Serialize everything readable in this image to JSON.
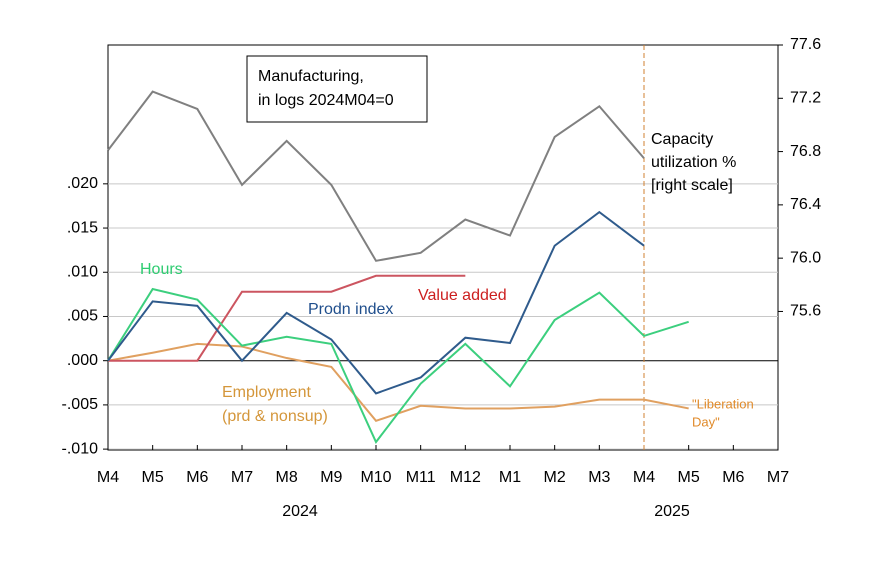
{
  "chart_data": {
    "type": "line",
    "categories": [
      "M4",
      "M5",
      "M6",
      "M7",
      "M8",
      "M9",
      "M10",
      "M11",
      "M12",
      "M1",
      "M2",
      "M3",
      "M4",
      "M5",
      "M6",
      "M7"
    ],
    "year_labels": [
      "2024",
      "2025"
    ],
    "series": [
      {
        "name": "Capacity utilization % [right scale]",
        "color": "#808080",
        "axis": "y2",
        "values": [
          76.81,
          77.25,
          77.12,
          76.55,
          76.88,
          76.55,
          75.98,
          76.04,
          76.29,
          76.17,
          76.91,
          77.14,
          76.75,
          null,
          null,
          null
        ]
      },
      {
        "name": "Employment (prd & nonsup)",
        "color": "#e0a060",
        "values": [
          0,
          0.0009,
          0.0019,
          0.0016,
          0.0003,
          -0.0007,
          -0.0068,
          -0.0051,
          -0.0054,
          -0.0054,
          -0.0052,
          -0.0044,
          -0.0044,
          -0.0054,
          null,
          null
        ]
      },
      {
        "name": "Value added",
        "color": "#cc5560",
        "values": [
          0,
          0,
          0,
          0.0078,
          0.0078,
          0.0078,
          0.0096,
          0.0096,
          0.0096,
          null,
          null,
          null,
          null,
          null,
          null,
          null
        ]
      },
      {
        "name": "Hours",
        "color": "#3ccf7e",
        "values": [
          0,
          0.0081,
          0.0069,
          0.0017,
          0.0027,
          0.0019,
          -0.0092,
          -0.0026,
          0.0019,
          -0.0029,
          0.0046,
          0.0077,
          0.0028,
          0.0044,
          null,
          null
        ]
      },
      {
        "name": "Prodn index",
        "color": "#2f5b8c",
        "values": [
          0,
          0.0067,
          0.0062,
          0,
          0.0054,
          0.0024,
          -0.0037,
          -0.0019,
          0.0026,
          0.002,
          0.013,
          0.0168,
          0.013,
          null,
          null,
          null
        ]
      }
    ],
    "ylim": [
      -0.0101,
      0.0357
    ],
    "yticks": [
      {
        "value": 0.02,
        "label": ".020"
      },
      {
        "value": 0.015,
        "label": ".015"
      },
      {
        "value": 0.01,
        "label": ".010"
      },
      {
        "value": 0.005,
        "label": ".005"
      },
      {
        "value": 0,
        "label": ".000"
      },
      {
        "value": -0.005,
        "label": "-.005"
      },
      {
        "value": -0.01,
        "label": "-.010"
      }
    ],
    "y2lim": [
      74.56,
      77.6
    ],
    "y2ticks": [
      77.6,
      77.2,
      76.8,
      76.4,
      {
        "value": 76,
        "label": "76.0"
      },
      75.6
    ],
    "grid": true,
    "vline": {
      "at": 12,
      "color": "#d08030"
    },
    "annotations": [
      {
        "lines": [
          "Manufacturing,",
          "in logs 2024M04=0"
        ],
        "color": "#000000"
      },
      {
        "lines": [
          "Capacity",
          "utilization %",
          "[right scale]"
        ],
        "color": "#000000"
      },
      {
        "lines": [
          "Hours"
        ],
        "color": "#2ecc71"
      },
      {
        "lines": [
          "Prodn index"
        ],
        "color": "#1f4e8c"
      },
      {
        "lines": [
          "Value added"
        ],
        "color": "#cc1f1f"
      },
      {
        "lines": [
          "Employment",
          "(prd & nonsup)"
        ],
        "color": "#d4963a"
      },
      {
        "lines": [
          "\"Liberation",
          "Day\""
        ],
        "color": "#e08a2a"
      }
    ]
  }
}
